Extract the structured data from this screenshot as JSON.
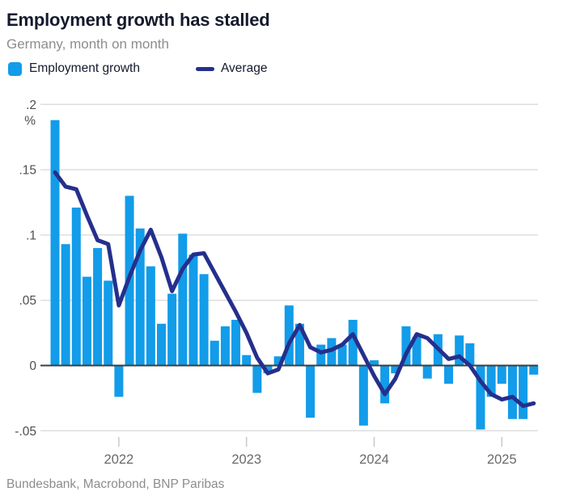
{
  "header": {
    "title": "Employment growth has stalled",
    "subtitle": "Germany, month on month"
  },
  "legend": {
    "bar_label": "Employment growth",
    "line_label": "Average"
  },
  "source": "Bundesbank, Macrobond, BNP Paribas",
  "colors": {
    "bar": "#129CE9",
    "line": "#252F8C",
    "title": "#151A2D",
    "muted": "#8D8D8D",
    "axis_label": "#4E4E4E",
    "year_label": "#6A6A6A",
    "grid": "#DEDEDE",
    "zero_line": "#3C3C3C",
    "tick": "#C9C9C9"
  },
  "chart_data": {
    "type": "bar",
    "title": "Employment growth has stalled",
    "subtitle": "Germany, month on month",
    "unit": "%",
    "grid": true,
    "legend_position": "top",
    "ylim": [
      -0.055,
      0.205
    ],
    "yticks": [
      ".2",
      ".15",
      ".1",
      ".05",
      "0",
      "-.05"
    ],
    "ytick_values": [
      0.2,
      0.15,
      0.1,
      0.05,
      0,
      -0.05
    ],
    "xticks": [
      "2022",
      "2023",
      "2024",
      "2025"
    ],
    "x": [
      "2021-07",
      "2021-08",
      "2021-09",
      "2021-10",
      "2021-11",
      "2021-12",
      "2022-01",
      "2022-02",
      "2022-03",
      "2022-04",
      "2022-05",
      "2022-06",
      "2022-07",
      "2022-08",
      "2022-09",
      "2022-10",
      "2022-11",
      "2022-12",
      "2023-01",
      "2023-02",
      "2023-03",
      "2023-04",
      "2023-05",
      "2023-06",
      "2023-07",
      "2023-08",
      "2023-09",
      "2023-10",
      "2023-11",
      "2023-12",
      "2024-01",
      "2024-02",
      "2024-03",
      "2024-04",
      "2024-05",
      "2024-06",
      "2024-07",
      "2024-08",
      "2024-09",
      "2024-10",
      "2024-11",
      "2024-12",
      "2025-01",
      "2025-02",
      "2025-03",
      "2025-04"
    ],
    "series": [
      {
        "name": "Employment growth",
        "type": "bar",
        "color": "#129CE9",
        "values": [
          0.188,
          0.093,
          0.121,
          0.068,
          0.09,
          0.065,
          -0.024,
          0.13,
          0.105,
          0.076,
          0.032,
          0.055,
          0.101,
          0.085,
          0.07,
          0.019,
          0.03,
          0.035,
          0.008,
          -0.021,
          -0.006,
          0.007,
          0.046,
          0.032,
          -0.04,
          0.016,
          0.021,
          0.016,
          0.035,
          -0.046,
          0.004,
          -0.029,
          -0.006,
          0.03,
          0.022,
          -0.01,
          0.024,
          -0.014,
          0.023,
          0.017,
          -0.049,
          -0.024,
          -0.014,
          -0.041,
          -0.041,
          -0.007
        ]
      },
      {
        "name": "Average",
        "type": "line",
        "color": "#252F8C",
        "values": [
          0.148,
          0.137,
          0.135,
          0.115,
          0.096,
          0.093,
          0.046,
          0.068,
          0.088,
          0.104,
          0.083,
          0.057,
          0.074,
          0.085,
          0.086,
          0.071,
          0.056,
          0.041,
          0.025,
          0.006,
          -0.006,
          -0.003,
          0.017,
          0.031,
          0.014,
          0.01,
          0.012,
          0.016,
          0.024,
          0.008,
          -0.008,
          -0.022,
          -0.01,
          0.009,
          0.024,
          0.021,
          0.013,
          0.005,
          0.007,
          0.0,
          -0.012,
          -0.022,
          -0.026,
          -0.024,
          -0.031,
          -0.029
        ]
      }
    ]
  }
}
